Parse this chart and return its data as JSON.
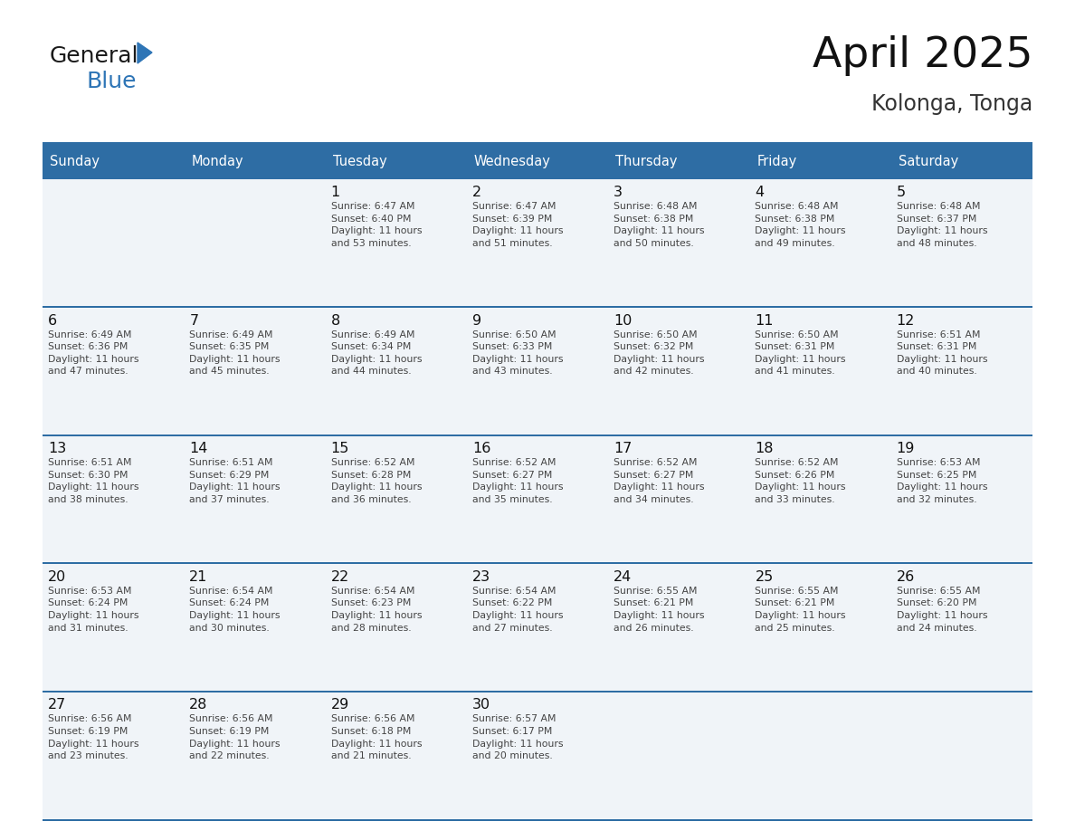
{
  "title": "April 2025",
  "subtitle": "Kolonga, Tonga",
  "days_of_week": [
    "Sunday",
    "Monday",
    "Tuesday",
    "Wednesday",
    "Thursday",
    "Friday",
    "Saturday"
  ],
  "header_bg": "#2E6DA4",
  "header_text_color": "#FFFFFF",
  "cell_bg": "#F0F4F8",
  "grid_line_color": "#2E6DA4",
  "text_color": "#444444",
  "day_number_color": "#111111",
  "calendar_data": [
    [
      {
        "day": null,
        "sunrise": null,
        "sunset": null,
        "daylight": null
      },
      {
        "day": null,
        "sunrise": null,
        "sunset": null,
        "daylight": null
      },
      {
        "day": 1,
        "sunrise": "6:47 AM",
        "sunset": "6:40 PM",
        "daylight": "11 hours and 53 minutes"
      },
      {
        "day": 2,
        "sunrise": "6:47 AM",
        "sunset": "6:39 PM",
        "daylight": "11 hours and 51 minutes"
      },
      {
        "day": 3,
        "sunrise": "6:48 AM",
        "sunset": "6:38 PM",
        "daylight": "11 hours and 50 minutes"
      },
      {
        "day": 4,
        "sunrise": "6:48 AM",
        "sunset": "6:38 PM",
        "daylight": "11 hours and 49 minutes"
      },
      {
        "day": 5,
        "sunrise": "6:48 AM",
        "sunset": "6:37 PM",
        "daylight": "11 hours and 48 minutes"
      }
    ],
    [
      {
        "day": 6,
        "sunrise": "6:49 AM",
        "sunset": "6:36 PM",
        "daylight": "11 hours and 47 minutes"
      },
      {
        "day": 7,
        "sunrise": "6:49 AM",
        "sunset": "6:35 PM",
        "daylight": "11 hours and 45 minutes"
      },
      {
        "day": 8,
        "sunrise": "6:49 AM",
        "sunset": "6:34 PM",
        "daylight": "11 hours and 44 minutes"
      },
      {
        "day": 9,
        "sunrise": "6:50 AM",
        "sunset": "6:33 PM",
        "daylight": "11 hours and 43 minutes"
      },
      {
        "day": 10,
        "sunrise": "6:50 AM",
        "sunset": "6:32 PM",
        "daylight": "11 hours and 42 minutes"
      },
      {
        "day": 11,
        "sunrise": "6:50 AM",
        "sunset": "6:31 PM",
        "daylight": "11 hours and 41 minutes"
      },
      {
        "day": 12,
        "sunrise": "6:51 AM",
        "sunset": "6:31 PM",
        "daylight": "11 hours and 40 minutes"
      }
    ],
    [
      {
        "day": 13,
        "sunrise": "6:51 AM",
        "sunset": "6:30 PM",
        "daylight": "11 hours and 38 minutes"
      },
      {
        "day": 14,
        "sunrise": "6:51 AM",
        "sunset": "6:29 PM",
        "daylight": "11 hours and 37 minutes"
      },
      {
        "day": 15,
        "sunrise": "6:52 AM",
        "sunset": "6:28 PM",
        "daylight": "11 hours and 36 minutes"
      },
      {
        "day": 16,
        "sunrise": "6:52 AM",
        "sunset": "6:27 PM",
        "daylight": "11 hours and 35 minutes"
      },
      {
        "day": 17,
        "sunrise": "6:52 AM",
        "sunset": "6:27 PM",
        "daylight": "11 hours and 34 minutes"
      },
      {
        "day": 18,
        "sunrise": "6:52 AM",
        "sunset": "6:26 PM",
        "daylight": "11 hours and 33 minutes"
      },
      {
        "day": 19,
        "sunrise": "6:53 AM",
        "sunset": "6:25 PM",
        "daylight": "11 hours and 32 minutes"
      }
    ],
    [
      {
        "day": 20,
        "sunrise": "6:53 AM",
        "sunset": "6:24 PM",
        "daylight": "11 hours and 31 minutes"
      },
      {
        "day": 21,
        "sunrise": "6:54 AM",
        "sunset": "6:24 PM",
        "daylight": "11 hours and 30 minutes"
      },
      {
        "day": 22,
        "sunrise": "6:54 AM",
        "sunset": "6:23 PM",
        "daylight": "11 hours and 28 minutes"
      },
      {
        "day": 23,
        "sunrise": "6:54 AM",
        "sunset": "6:22 PM",
        "daylight": "11 hours and 27 minutes"
      },
      {
        "day": 24,
        "sunrise": "6:55 AM",
        "sunset": "6:21 PM",
        "daylight": "11 hours and 26 minutes"
      },
      {
        "day": 25,
        "sunrise": "6:55 AM",
        "sunset": "6:21 PM",
        "daylight": "11 hours and 25 minutes"
      },
      {
        "day": 26,
        "sunrise": "6:55 AM",
        "sunset": "6:20 PM",
        "daylight": "11 hours and 24 minutes"
      }
    ],
    [
      {
        "day": 27,
        "sunrise": "6:56 AM",
        "sunset": "6:19 PM",
        "daylight": "11 hours and 23 minutes"
      },
      {
        "day": 28,
        "sunrise": "6:56 AM",
        "sunset": "6:19 PM",
        "daylight": "11 hours and 22 minutes"
      },
      {
        "day": 29,
        "sunrise": "6:56 AM",
        "sunset": "6:18 PM",
        "daylight": "11 hours and 21 minutes"
      },
      {
        "day": 30,
        "sunrise": "6:57 AM",
        "sunset": "6:17 PM",
        "daylight": "11 hours and 20 minutes"
      },
      {
        "day": null,
        "sunrise": null,
        "sunset": null,
        "daylight": null
      },
      {
        "day": null,
        "sunrise": null,
        "sunset": null,
        "daylight": null
      },
      {
        "day": null,
        "sunrise": null,
        "sunset": null,
        "daylight": null
      }
    ]
  ],
  "logo_text1": "General",
  "logo_text2": "Blue",
  "logo_text1_color": "#1a1a1a",
  "logo_text2_color": "#2E75B6",
  "logo_triangle_color": "#2E75B6",
  "title_color": "#111111",
  "subtitle_color": "#333333"
}
